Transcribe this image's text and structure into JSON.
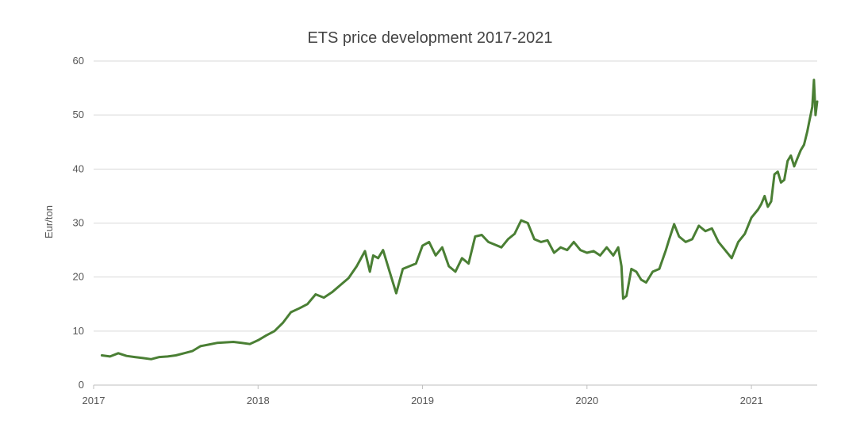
{
  "chart_data": {
    "type": "line",
    "title": "ETS price development 2017-2021",
    "xlabel": "",
    "ylabel": "Eur/ton",
    "ylim": [
      0,
      60
    ],
    "yticks": [
      0,
      10,
      20,
      30,
      40,
      50,
      60
    ],
    "xlim": [
      2017.0,
      2021.4
    ],
    "xticks": [
      2017,
      2018,
      2019,
      2020,
      2021
    ],
    "xtick_labels": [
      "2017",
      "2018",
      "2019",
      "2020",
      "2021"
    ],
    "grid": true,
    "legend": "none",
    "color": "#4a7f34",
    "series": [
      {
        "x": [
          2017.05,
          2017.1,
          2017.15,
          2017.2,
          2017.25,
          2017.3,
          2017.35,
          2017.4,
          2017.45,
          2017.5,
          2017.55,
          2017.6,
          2017.65,
          2017.7,
          2017.75,
          2017.8,
          2017.85,
          2017.9,
          2017.95,
          2018.0,
          2018.05,
          2018.1,
          2018.15,
          2018.2,
          2018.25,
          2018.3,
          2018.35,
          2018.4,
          2018.45,
          2018.5,
          2018.55,
          2018.6,
          2018.65,
          2018.68,
          2018.7,
          2018.73,
          2018.76,
          2018.8,
          2018.84,
          2018.88,
          2018.92,
          2018.96,
          2019.0,
          2019.04,
          2019.08,
          2019.12,
          2019.16,
          2019.2,
          2019.24,
          2019.28,
          2019.32,
          2019.36,
          2019.4,
          2019.44,
          2019.48,
          2019.52,
          2019.56,
          2019.6,
          2019.64,
          2019.68,
          2019.72,
          2019.76,
          2019.8,
          2019.84,
          2019.88,
          2019.92,
          2019.96,
          2020.0,
          2020.04,
          2020.08,
          2020.12,
          2020.16,
          2020.19,
          2020.21,
          2020.22,
          2020.24,
          2020.27,
          2020.3,
          2020.33,
          2020.36,
          2020.4,
          2020.44,
          2020.48,
          2020.5,
          2020.53,
          2020.56,
          2020.6,
          2020.64,
          2020.68,
          2020.72,
          2020.76,
          2020.8,
          2020.84,
          2020.88,
          2020.92,
          2020.96,
          2021.0,
          2021.04,
          2021.06,
          2021.08,
          2021.1,
          2021.12,
          2021.14,
          2021.16,
          2021.18,
          2021.2,
          2021.22,
          2021.24,
          2021.26,
          2021.28,
          2021.3,
          2021.32,
          2021.34,
          2021.35,
          2021.36,
          2021.37,
          2021.38,
          2021.39,
          2021.4
        ],
        "y": [
          5.5,
          5.3,
          5.9,
          5.4,
          5.2,
          5.0,
          4.8,
          5.2,
          5.3,
          5.5,
          5.9,
          6.3,
          7.2,
          7.5,
          7.8,
          7.9,
          8.0,
          7.8,
          7.6,
          8.3,
          9.2,
          10.0,
          11.5,
          13.5,
          14.2,
          15.0,
          16.8,
          16.2,
          17.2,
          18.5,
          19.8,
          22.0,
          24.8,
          21.0,
          24.0,
          23.5,
          25.0,
          21.0,
          17.0,
          21.5,
          22.0,
          22.5,
          25.8,
          26.5,
          24.0,
          25.5,
          22.0,
          21.0,
          23.5,
          22.5,
          27.5,
          27.8,
          26.5,
          26.0,
          25.5,
          27.0,
          28.0,
          30.5,
          30.0,
          27.0,
          26.5,
          26.8,
          24.5,
          25.5,
          25.0,
          26.5,
          25.0,
          24.5,
          24.8,
          24.0,
          25.5,
          24.0,
          25.5,
          22.0,
          16.0,
          16.5,
          21.5,
          21.0,
          19.5,
          19.0,
          21.0,
          21.5,
          25.0,
          27.0,
          29.8,
          27.5,
          26.5,
          27.0,
          29.5,
          28.5,
          29.0,
          26.5,
          25.0,
          23.5,
          26.5,
          28.0,
          31.0,
          32.5,
          33.5,
          35.0,
          33.0,
          34.0,
          39.0,
          39.5,
          37.5,
          38.0,
          41.5,
          42.5,
          40.5,
          42.0,
          43.5,
          44.5,
          47.0,
          48.5,
          50.0,
          51.5,
          56.5,
          50.0,
          52.5
        ]
      }
    ]
  }
}
